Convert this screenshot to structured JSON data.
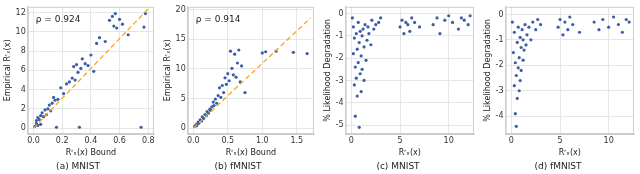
{
  "chart_data": [
    {
      "type": "scatter",
      "title": "(a) MNIST",
      "x_label": "Rʳₓ(x) Bound",
      "y_label": "Empirical Rʳₓ(x)",
      "annotation": "ρ = 0.924",
      "grid": true,
      "xlim": [
        -0.04,
        0.84
      ],
      "ylim": [
        -0.6,
        12.6
      ],
      "xticks": [
        {
          "value": 0,
          "label": "0.0"
        },
        0.2,
        0.4,
        0.6,
        0.8
      ],
      "yticks": [
        0,
        2,
        4,
        6,
        8,
        10,
        12
      ],
      "series": [
        {
          "color": "#3a5fa8",
          "marker": "circle",
          "x": [
            0.01,
            0.02,
            0.02,
            0.03,
            0.03,
            0.04,
            0.05,
            0.05,
            0.06,
            0.07,
            0.08,
            0.09,
            0.1,
            0.11,
            0.12,
            0.13,
            0.14,
            0.15,
            0.16,
            0.17,
            0.19,
            0.21,
            0.23,
            0.25,
            0.27,
            0.28,
            0.29,
            0.3,
            0.31,
            0.32,
            0.33,
            0.34,
            0.36,
            0.38,
            0.4,
            0.42,
            0.44,
            0.46,
            0.5,
            0.53,
            0.55,
            0.56,
            0.57,
            0.58,
            0.6,
            0.62,
            0.66,
            0.75,
            0.77,
            0.78
          ],
          "values": [
            0.2,
            0.5,
            0.8,
            0.3,
            1.1,
            0.9,
            0.4,
            1.3,
            1.6,
            1.2,
            1.9,
            1.4,
            2.0,
            2.4,
            1.8,
            2.6,
            3.2,
            2.9,
            0.1,
            3.0,
            4.2,
            3.6,
            4.6,
            4.8,
            5.2,
            6.4,
            5.0,
            6.6,
            5.8,
            0.1,
            6.2,
            7.2,
            6.7,
            6.5,
            7.6,
            5.9,
            8.8,
            9.4,
            9.0,
            11.2,
            11.6,
            10.6,
            11.9,
            10.4,
            11.3,
            10.8,
            9.7,
            0.1,
            10.5,
            11.9
          ]
        },
        {
          "type": "line",
          "color": "#f5a623",
          "line_style": "dashed",
          "x": [
            0,
            0.8
          ],
          "values": [
            0,
            12.4
          ]
        }
      ]
    },
    {
      "type": "scatter",
      "title": "(b) fMNIST",
      "x_label": "Rʳₓ(x) Bound",
      "y_label": "Empirical Rʳₓ(x)",
      "annotation": "ρ = 0.914",
      "grid": true,
      "xlim": [
        -0.08,
        1.75
      ],
      "ylim": [
        -1,
        20.5
      ],
      "xticks": [
        {
          "value": 0,
          "label": "0.0"
        },
        0.5,
        {
          "value": 1,
          "label": "1.0"
        },
        1.5
      ],
      "yticks": [
        0,
        5,
        10,
        15,
        20
      ],
      "series": [
        {
          "color": "#3a5fa8",
          "marker": "circle",
          "x": [
            0.02,
            0.04,
            0.05,
            0.07,
            0.08,
            0.1,
            0.12,
            0.13,
            0.15,
            0.17,
            0.19,
            0.2,
            0.22,
            0.24,
            0.25,
            0.27,
            0.29,
            0.3,
            0.32,
            0.34,
            0.36,
            0.38,
            0.4,
            0.42,
            0.44,
            0.46,
            0.48,
            0.5,
            0.52,
            0.54,
            0.56,
            0.58,
            0.6,
            0.62,
            0.64,
            0.66,
            0.68,
            0.7,
            0.75,
            1.0,
            1.05,
            1.2,
            1.45,
            1.65
          ],
          "values": [
            0.3,
            0.6,
            0.4,
            1.0,
            0.8,
            1.4,
            1.2,
            1.9,
            1.6,
            2.3,
            2.1,
            2.8,
            2.5,
            3.2,
            3.0,
            3.6,
            4.4,
            3.8,
            4.9,
            4.2,
            5.5,
            6.8,
            5.2,
            7.2,
            6.0,
            8.5,
            7.4,
            9.2,
            8.0,
            13.0,
            10.1,
            9.0,
            12.5,
            8.6,
            11.0,
            13.2,
            7.8,
            10.5,
            6.0,
            12.7,
            12.9,
            13.0,
            12.8,
            12.6
          ]
        },
        {
          "type": "line",
          "color": "#f5a623",
          "line_style": "dashed",
          "x": [
            0,
            1.7
          ],
          "values": [
            0,
            18.6
          ]
        }
      ]
    },
    {
      "type": "scatter",
      "title": "(c) MNIST",
      "x_label": "Rʳₓ(x)",
      "y_label": "% Likelihood Degradation",
      "grid": true,
      "xlim": [
        -0.6,
        12.6
      ],
      "ylim": [
        -5.4,
        0.3
      ],
      "xticks": [
        0,
        5,
        10
      ],
      "yticks": [
        -5,
        -4,
        -3,
        -2,
        -1,
        0
      ],
      "series": [
        {
          "color": "#3a5fa8",
          "marker": "circle",
          "x": [
            0.1,
            0.2,
            0.2,
            0.3,
            0.3,
            0.4,
            0.4,
            0.5,
            0.5,
            0.6,
            0.6,
            0.7,
            0.7,
            0.8,
            0.8,
            0.9,
            0.9,
            1.0,
            1.0,
            1.1,
            1.1,
            1.2,
            1.3,
            1.3,
            1.4,
            1.5,
            1.6,
            1.7,
            1.8,
            2.0,
            2.1,
            2.3,
            2.5,
            2.8,
            3.0,
            5.0,
            5.2,
            5.4,
            5.6,
            5.8,
            6.0,
            6.2,
            6.5,
            7.0,
            8.4,
            8.8,
            9.1,
            9.6,
            10.0,
            10.4,
            11.0,
            11.3,
            11.6,
            12.0,
            12.2
          ],
          "values": [
            -0.2,
            -1.8,
            -0.6,
            -3.2,
            -1.1,
            -2.4,
            -4.6,
            -0.9,
            -2.9,
            -1.6,
            -3.7,
            -0.4,
            -2.2,
            -1.3,
            -5.1,
            -2.7,
            -0.8,
            -1.9,
            -3.5,
            -1.0,
            -2.5,
            -0.7,
            -1.5,
            -3.0,
            -0.5,
            -2.1,
            -1.2,
            -0.6,
            -0.9,
            -1.4,
            -0.3,
            -0.7,
            -0.5,
            -0.4,
            -0.2,
            -0.6,
            -0.3,
            -0.9,
            -0.4,
            -0.5,
            -0.8,
            -0.2,
            -0.4,
            -0.6,
            -0.5,
            -0.2,
            -0.9,
            -0.3,
            -0.1,
            -0.4,
            -0.7,
            -0.2,
            -0.3,
            -0.5,
            -0.1
          ]
        }
      ]
    },
    {
      "type": "scatter",
      "title": "(d) fMNIST",
      "x_label": "Rʳₓ(x)",
      "y_label": "% Likelihood Degradation",
      "grid": true,
      "xlim": [
        -0.6,
        12.6
      ],
      "ylim": [
        -4.7,
        0.3
      ],
      "xticks": [
        0,
        5,
        10
      ],
      "yticks": [
        -4,
        -3,
        -2,
        -1,
        0
      ],
      "series": [
        {
          "color": "#3a5fa8",
          "marker": "circle",
          "x": [
            0.1,
            0.2,
            0.3,
            0.3,
            0.4,
            0.4,
            0.5,
            0.5,
            0.6,
            0.6,
            0.7,
            0.7,
            0.8,
            0.8,
            0.9,
            0.9,
            1.0,
            1.0,
            1.1,
            1.2,
            1.2,
            1.3,
            1.4,
            1.5,
            1.6,
            1.8,
            2.0,
            2.2,
            2.5,
            2.7,
            3.0,
            4.8,
            5.0,
            5.3,
            5.5,
            5.8,
            6.0,
            6.3,
            7.0,
            8.5,
            9.0,
            9.4,
            10.0,
            10.5,
            11.0,
            11.4,
            11.8,
            12.1
          ],
          "values": [
            -0.3,
            -1.5,
            -2.8,
            -0.7,
            -3.9,
            -1.9,
            -2.4,
            -4.4,
            -1.1,
            -3.3,
            -0.5,
            -2.1,
            -1.7,
            -3.0,
            -0.9,
            -2.6,
            -1.3,
            -2.2,
            -0.6,
            -1.8,
            -1.0,
            -1.4,
            -0.4,
            -1.2,
            -0.8,
            -0.5,
            -1.0,
            -0.3,
            -0.6,
            -0.2,
            -0.4,
            -0.5,
            -0.2,
            -0.8,
            -0.3,
            -0.6,
            -0.1,
            -0.4,
            -0.7,
            -0.3,
            -0.6,
            -0.2,
            -0.5,
            -0.1,
            -0.4,
            -0.7,
            -0.2,
            -0.3
          ]
        }
      ]
    }
  ]
}
